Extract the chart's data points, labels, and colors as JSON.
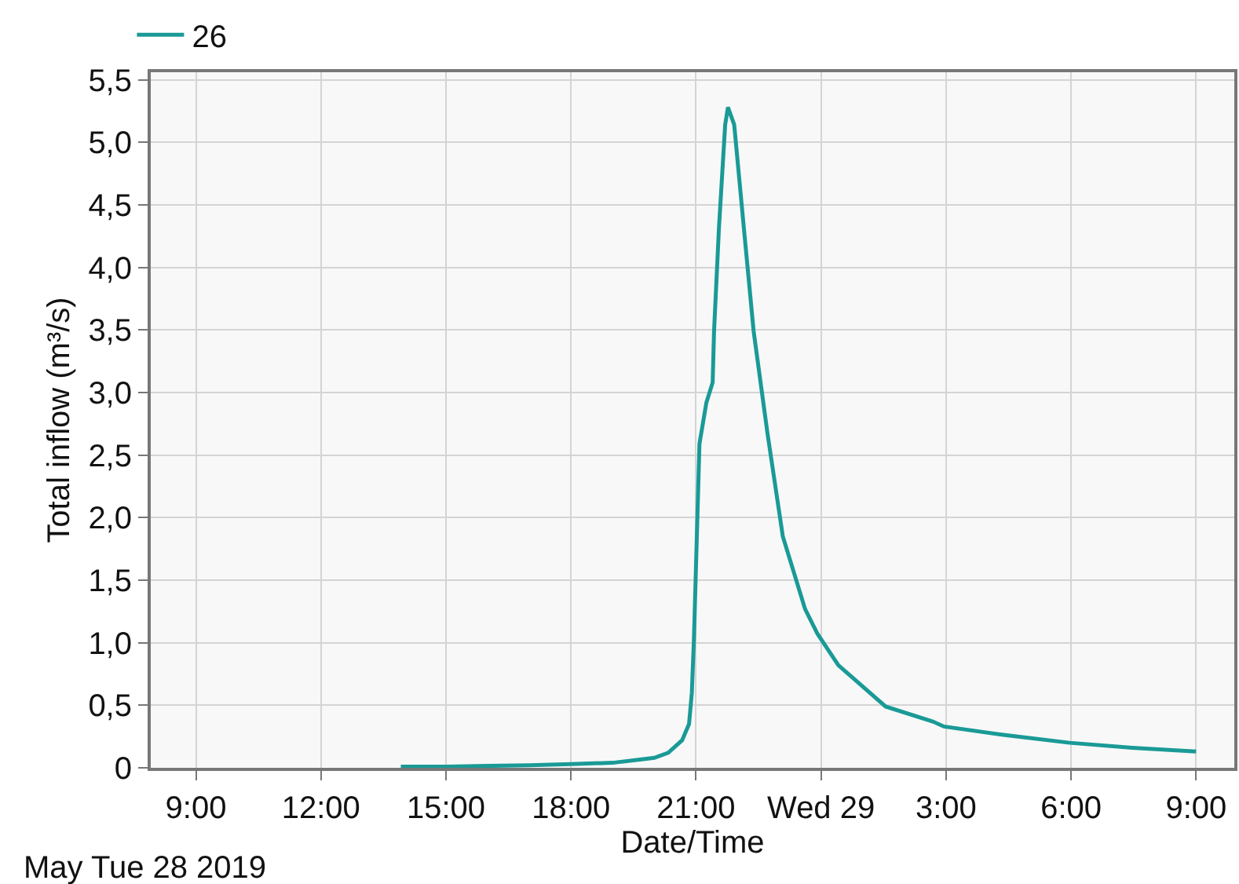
{
  "chart_data": {
    "type": "line",
    "xlabel": "Date/Time",
    "ylabel": "Total inflow (m³/s)",
    "annotations": [
      "May Tue 28 2019"
    ],
    "x": [
      "2019-05-28T13:55",
      "2019-05-28T15:00",
      "2019-05-28T16:00",
      "2019-05-28T17:00",
      "2019-05-28T18:00",
      "2019-05-28T19:00",
      "2019-05-28T19:30",
      "2019-05-28T20:00",
      "2019-05-28T20:20",
      "2019-05-28T20:40",
      "2019-05-28T20:50",
      "2019-05-28T20:54",
      "2019-05-28T20:57",
      "2019-05-28T21:05",
      "2019-05-28T21:15",
      "2019-05-28T21:24",
      "2019-05-28T21:26",
      "2019-05-28T21:33",
      "2019-05-28T21:42",
      "2019-05-28T21:46",
      "2019-05-28T21:55",
      "2019-05-28T22:09",
      "2019-05-28T22:23",
      "2019-05-28T22:43",
      "2019-05-28T23:05",
      "2019-05-28T23:37",
      "2019-05-28T23:55",
      "2019-05-29T00:25",
      "2019-05-29T01:33",
      "2019-05-29T02:41",
      "2019-05-29T02:57",
      "2019-05-29T04:27",
      "2019-05-29T05:58",
      "2019-05-29T07:28",
      "2019-05-29T09:00"
    ],
    "series": [
      {
        "name": "26",
        "color": "#1a9a96",
        "values": [
          0.01,
          0.01,
          0.015,
          0.02,
          0.03,
          0.04,
          0.06,
          0.08,
          0.12,
          0.22,
          0.35,
          0.6,
          1.02,
          2.59,
          2.92,
          3.08,
          3.49,
          4.31,
          5.14,
          5.28,
          5.14,
          4.31,
          3.49,
          2.67,
          1.85,
          1.27,
          1.07,
          0.82,
          0.49,
          0.37,
          0.33,
          0.26,
          0.2,
          0.16,
          0.13
        ]
      }
    ],
    "xlim": [
      "2019-05-28T07:55",
      "2019-05-29T09:55"
    ],
    "xticks": [
      {
        "value": "2019-05-28T09:00",
        "label": "9:00"
      },
      {
        "value": "2019-05-28T12:00",
        "label": "12:00"
      },
      {
        "value": "2019-05-28T15:00",
        "label": "15:00"
      },
      {
        "value": "2019-05-28T18:00",
        "label": "18:00"
      },
      {
        "value": "2019-05-28T21:00",
        "label": "21:00"
      },
      {
        "value": "2019-05-29T00:00",
        "label": "Wed 29"
      },
      {
        "value": "2019-05-29T03:00",
        "label": "3:00"
      },
      {
        "value": "2019-05-29T06:00",
        "label": "6:00"
      },
      {
        "value": "2019-05-29T09:00",
        "label": "9:00"
      }
    ],
    "ylim": [
      0,
      5.56
    ],
    "yticks": [
      0,
      {
        "value": 0.5,
        "label": "0,5"
      },
      {
        "value": 1,
        "label": "1,0"
      },
      {
        "value": 1.5,
        "label": "1,5"
      },
      {
        "value": 2,
        "label": "2,0"
      },
      {
        "value": 2.5,
        "label": "2,5"
      },
      {
        "value": 3,
        "label": "3,0"
      },
      {
        "value": 3.5,
        "label": "3,5"
      },
      {
        "value": 4,
        "label": "4,0"
      },
      {
        "value": 4.5,
        "label": "4,5"
      },
      {
        "value": 5,
        "label": "5,0"
      },
      {
        "value": 5.5,
        "label": "5,5"
      }
    ],
    "grid": true,
    "legend": "top left",
    "marker": "none",
    "line_style": "solid"
  }
}
